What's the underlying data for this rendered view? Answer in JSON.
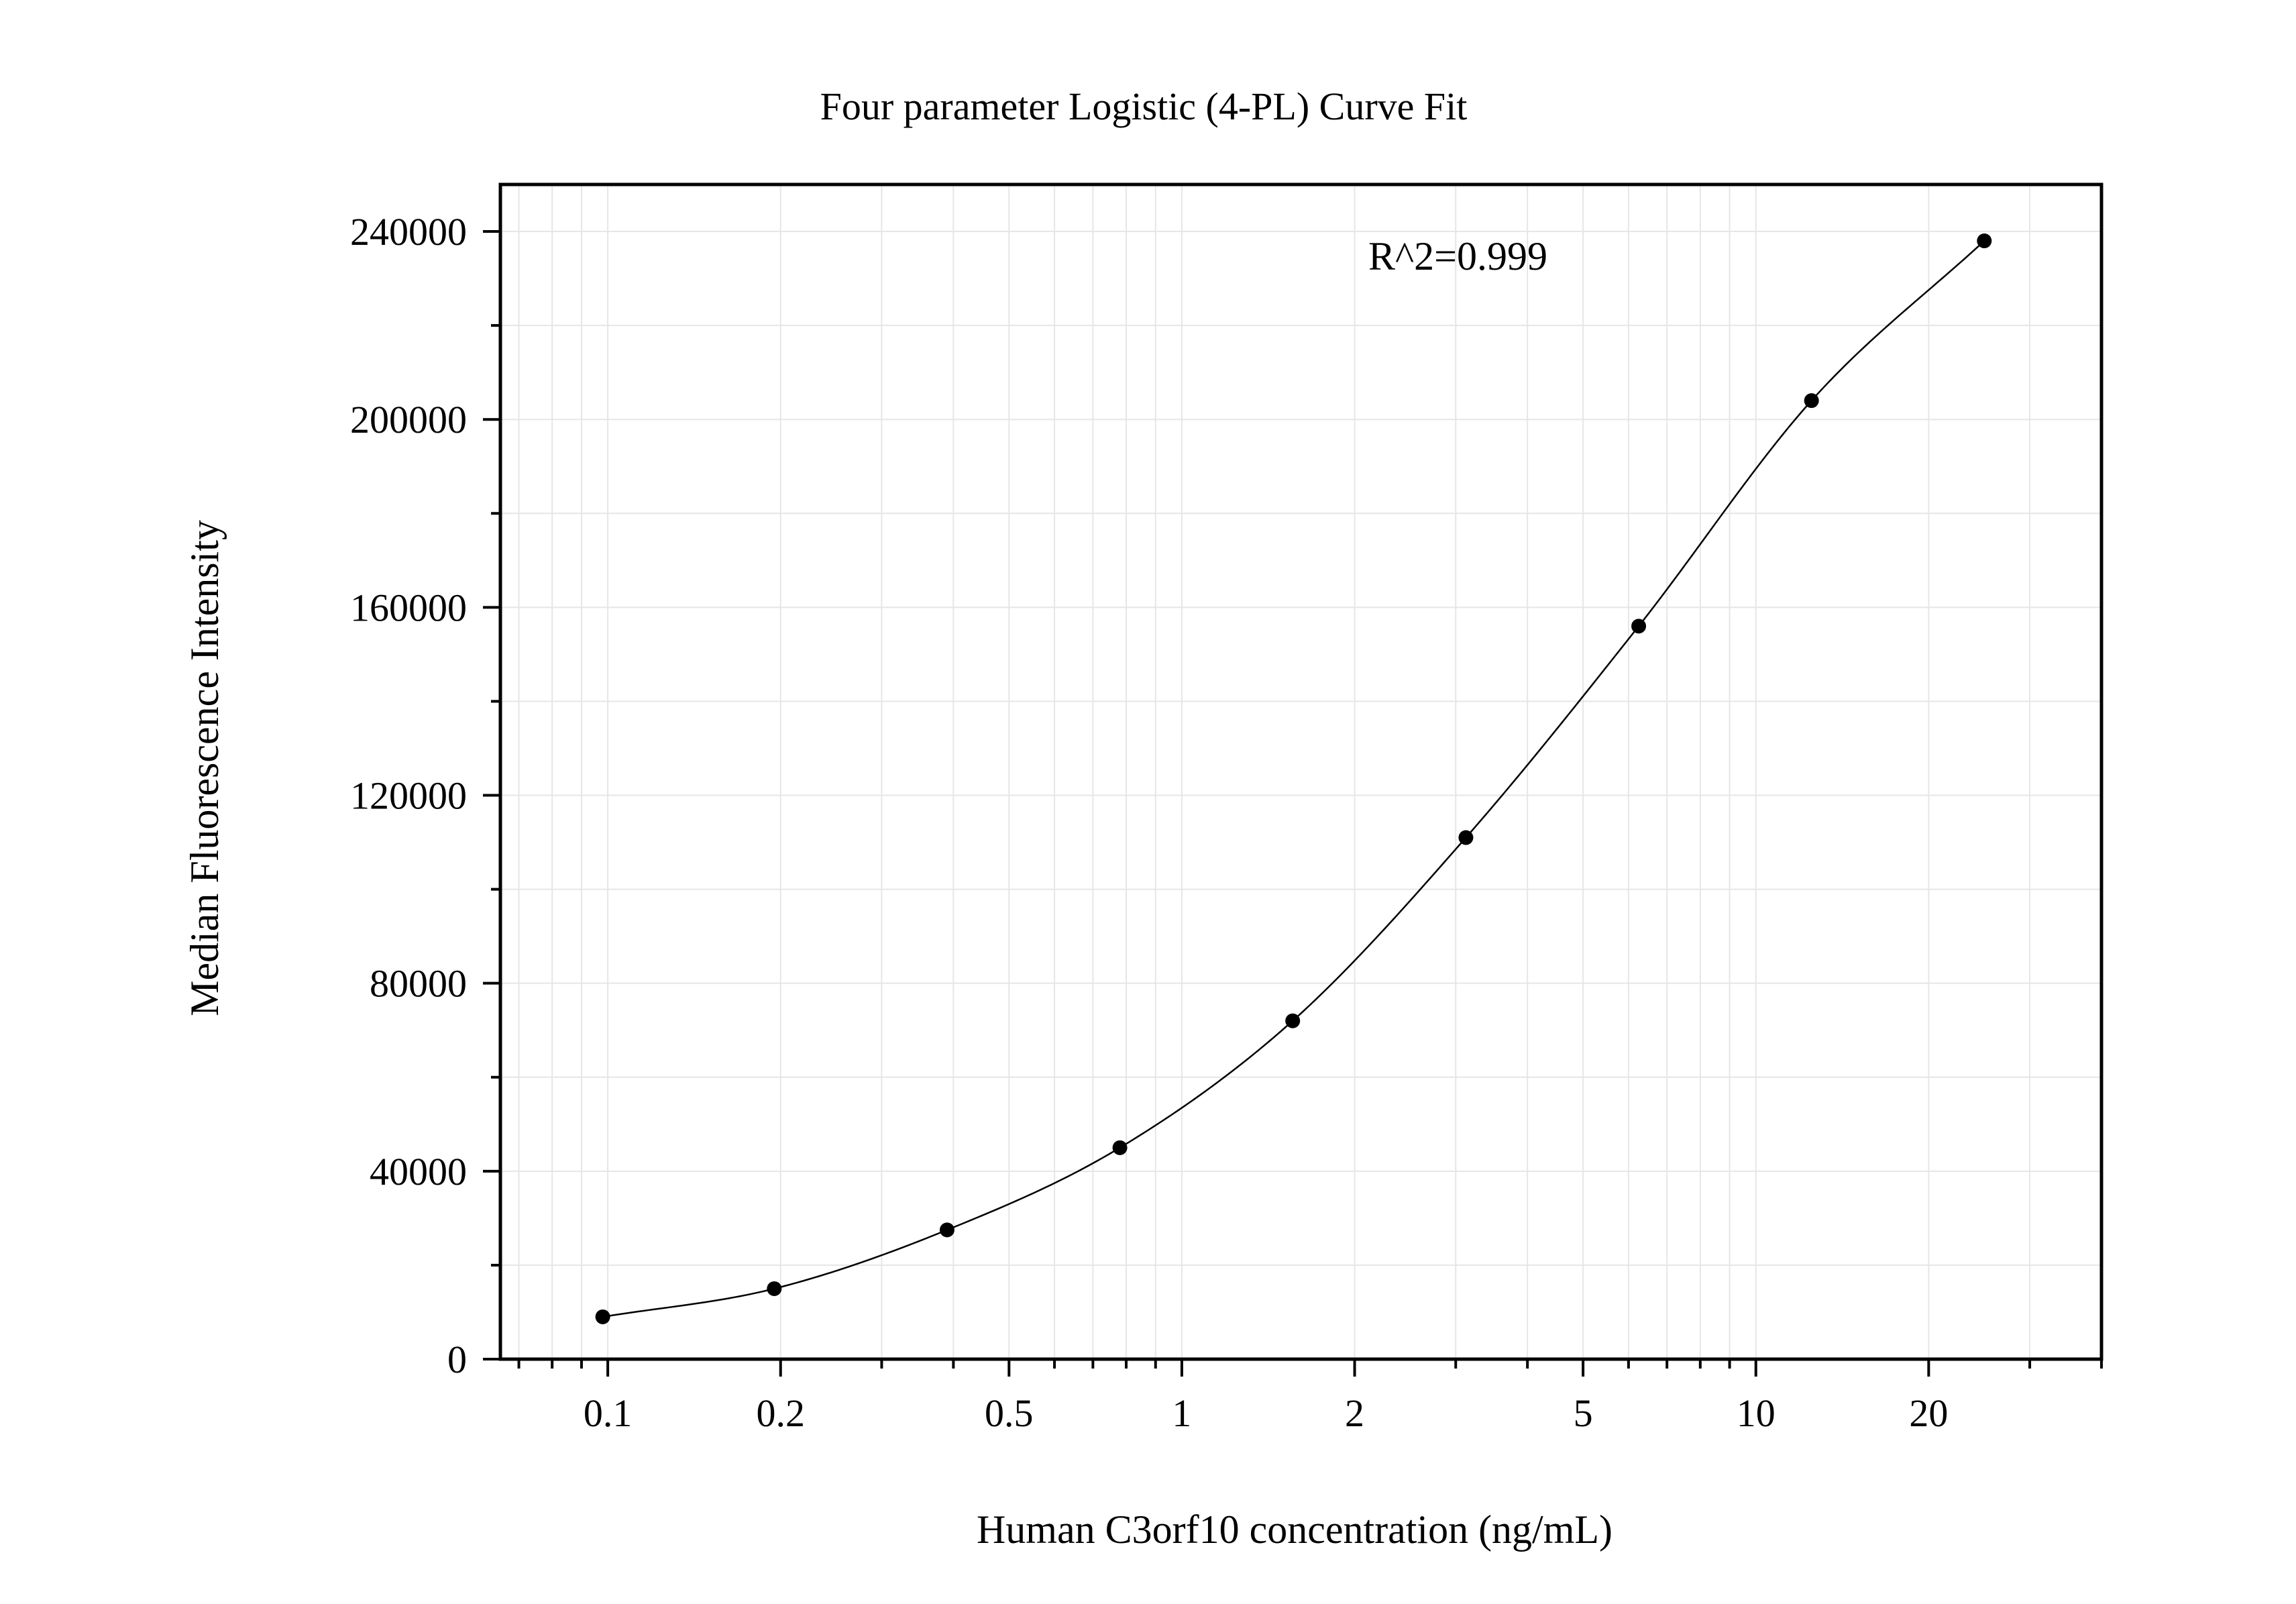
{
  "chart_data": {
    "type": "scatter",
    "title": "Four parameter Logistic (4-PL) Curve Fit",
    "xlabel": "Human C3orf10 concentration (ng/mL)",
    "ylabel": "Median Fluorescence Intensity",
    "x_scale": "log",
    "xlim": [
      0.065,
      40
    ],
    "ylim": [
      0,
      250000
    ],
    "grid": true,
    "x_ticks": [
      0.1,
      0.2,
      0.5,
      1,
      2,
      5,
      10,
      20
    ],
    "x_tick_labels": [
      "0.1",
      "0.2",
      "0.5",
      "1",
      "2",
      "5",
      "10",
      "20"
    ],
    "y_ticks": [
      0,
      40000,
      80000,
      120000,
      160000,
      200000,
      240000
    ],
    "y_tick_labels": [
      "0",
      "40000",
      "80000",
      "120000",
      "160000",
      "200000",
      "240000"
    ],
    "annotation": "R^2=0.999",
    "series": [
      {
        "x": [
          0.098,
          0.195,
          0.39,
          0.78,
          1.56,
          3.125,
          6.25,
          12.5,
          25
        ],
        "y": [
          9000,
          15000,
          27500,
          45000,
          72000,
          111000,
          156000,
          204000,
          238000
        ]
      }
    ],
    "fit_curve": {
      "model": "4-PL",
      "x_range": [
        0.098,
        25
      ]
    }
  }
}
